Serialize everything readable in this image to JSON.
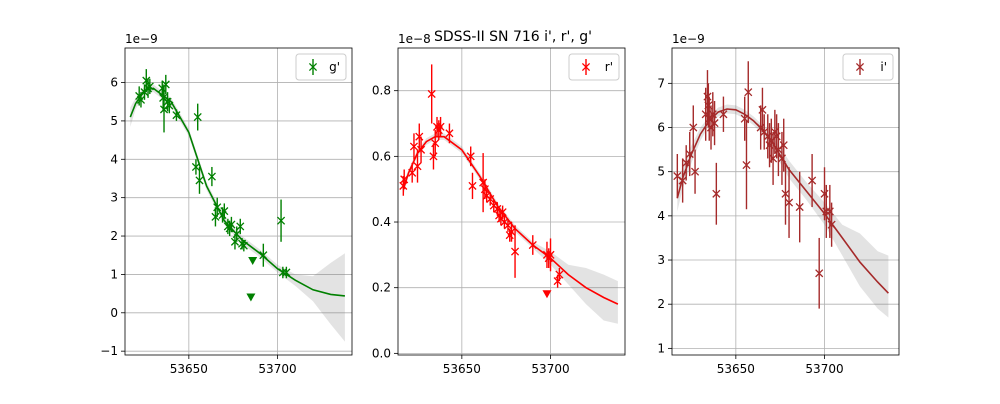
{
  "figure": {
    "title": "SDSS-II SN 716  i', r', g'"
  },
  "chart_data": [
    {
      "type": "scatter",
      "legend_label": "g'",
      "legend_position": "upper right",
      "color": "#008000",
      "grid": true,
      "offset_text": "1e−9",
      "xlim": [
        53614,
        53742
      ],
      "ylim": [
        -1.1,
        6.9
      ],
      "xticks": [
        53650,
        53700
      ],
      "xtick_labels": [
        "53650",
        "53700"
      ],
      "yticks": [
        -1,
        0,
        1,
        2,
        3,
        4,
        5,
        6
      ],
      "ytick_labels": [
        "−1",
        "0",
        "1",
        "2",
        "3",
        "4",
        "5",
        "6"
      ],
      "points": [
        {
          "x": 53622,
          "y": 5.65,
          "err": 0.25
        },
        {
          "x": 53623,
          "y": 5.55,
          "err": 0.2
        },
        {
          "x": 53625,
          "y": 5.75,
          "err": 0.2
        },
        {
          "x": 53626,
          "y": 6.05,
          "err": 0.3
        },
        {
          "x": 53627,
          "y": 5.85,
          "err": 0.25
        },
        {
          "x": 53628,
          "y": 5.9,
          "err": 0.2
        },
        {
          "x": 53635,
          "y": 5.85,
          "err": 0.2
        },
        {
          "x": 53635.5,
          "y": 5.6,
          "err": 0.35
        },
        {
          "x": 53636,
          "y": 5.3,
          "err": 0.6
        },
        {
          "x": 53637,
          "y": 5.95,
          "err": 0.25
        },
        {
          "x": 53638,
          "y": 5.5,
          "err": 0.25
        },
        {
          "x": 53639,
          "y": 5.4,
          "err": 0.2
        },
        {
          "x": 53643,
          "y": 5.15,
          "err": 0.15
        },
        {
          "x": 53654,
          "y": 3.8,
          "err": 0.2
        },
        {
          "x": 53655,
          "y": 5.1,
          "err": 0.35
        },
        {
          "x": 53656,
          "y": 3.45,
          "err": 0.35
        },
        {
          "x": 53663,
          "y": 3.55,
          "err": 0.25
        },
        {
          "x": 53665,
          "y": 2.5,
          "err": 0.25
        },
        {
          "x": 53666,
          "y": 2.75,
          "err": 0.25
        },
        {
          "x": 53669,
          "y": 2.55,
          "err": 0.2
        },
        {
          "x": 53670,
          "y": 2.65,
          "err": 0.2
        },
        {
          "x": 53672,
          "y": 2.25,
          "err": 0.2
        },
        {
          "x": 53673,
          "y": 2.2,
          "err": 0.2
        },
        {
          "x": 53674,
          "y": 2.3,
          "err": 0.2
        },
        {
          "x": 53676,
          "y": 1.85,
          "err": 0.2
        },
        {
          "x": 53677,
          "y": 2.05,
          "err": 0.2
        },
        {
          "x": 53679,
          "y": 2.25,
          "err": 0.2
        },
        {
          "x": 53680,
          "y": 1.8,
          "err": 0.15
        },
        {
          "x": 53681,
          "y": 1.75,
          "err": 0.15
        },
        {
          "x": 53692,
          "y": 1.5,
          "err": 0.3
        },
        {
          "x": 53702,
          "y": 2.4,
          "err": 0.55
        },
        {
          "x": 53703,
          "y": 1.05,
          "err": 0.15
        },
        {
          "x": 53705,
          "y": 1.05,
          "err": 0.15
        }
      ],
      "upper_limits": [
        {
          "x": 53686,
          "y": 1.35
        },
        {
          "x": 53685,
          "y": 0.4
        }
      ],
      "fit_line": {
        "x": [
          53617,
          53620,
          53625,
          53630,
          53640,
          53650,
          53660,
          53670,
          53680,
          53690,
          53700,
          53710,
          53720,
          53730,
          53738
        ],
        "y": [
          5.1,
          5.45,
          5.8,
          5.85,
          5.5,
          4.7,
          3.3,
          2.4,
          1.9,
          1.55,
          1.15,
          0.85,
          0.6,
          0.48,
          0.44
        ]
      },
      "fit_band": {
        "x": [
          53617,
          53620,
          53625,
          53630,
          53640,
          53650,
          53660,
          53670,
          53680,
          53690,
          53700,
          53710,
          53720,
          53730,
          53738
        ],
        "lower": [
          4.85,
          5.3,
          5.7,
          5.75,
          5.4,
          4.6,
          3.2,
          2.3,
          1.8,
          1.45,
          1.05,
          0.7,
          0.3,
          -0.3,
          -0.75
        ],
        "upper": [
          5.35,
          5.6,
          5.9,
          5.95,
          5.6,
          4.8,
          3.4,
          2.5,
          2.0,
          1.65,
          1.25,
          1.0,
          0.95,
          1.3,
          1.55
        ]
      }
    },
    {
      "type": "scatter",
      "legend_label": "r'",
      "legend_position": "upper right",
      "color": "#ff0000",
      "grid": true,
      "offset_text": "1e−8",
      "xlim": [
        53614,
        53742
      ],
      "ylim": [
        -0.005,
        0.93
      ],
      "xticks": [
        53650,
        53700
      ],
      "xtick_labels": [
        "53650",
        "53700"
      ],
      "yticks": [
        0.0,
        0.2,
        0.4,
        0.6,
        0.8
      ],
      "ytick_labels": [
        "0.0",
        "0.2",
        "0.4",
        "0.6",
        "0.8"
      ],
      "points": [
        {
          "x": 53617,
          "y": 0.51,
          "err": 0.03
        },
        {
          "x": 53617.5,
          "y": 0.53,
          "err": 0.03
        },
        {
          "x": 53622,
          "y": 0.55,
          "err": 0.03
        },
        {
          "x": 53623,
          "y": 0.63,
          "err": 0.04
        },
        {
          "x": 53625,
          "y": 0.57,
          "err": 0.05
        },
        {
          "x": 53626,
          "y": 0.66,
          "err": 0.04
        },
        {
          "x": 53627,
          "y": 0.62,
          "err": 0.04
        },
        {
          "x": 53633,
          "y": 0.79,
          "err": 0.09
        },
        {
          "x": 53634,
          "y": 0.6,
          "err": 0.04
        },
        {
          "x": 53635,
          "y": 0.64,
          "err": 0.04
        },
        {
          "x": 53636,
          "y": 0.69,
          "err": 0.03
        },
        {
          "x": 53637,
          "y": 0.68,
          "err": 0.03
        },
        {
          "x": 53638,
          "y": 0.69,
          "err": 0.03
        },
        {
          "x": 53643,
          "y": 0.67,
          "err": 0.03
        },
        {
          "x": 53655,
          "y": 0.6,
          "err": 0.03
        },
        {
          "x": 53656,
          "y": 0.51,
          "err": 0.04
        },
        {
          "x": 53662,
          "y": 0.52,
          "err": 0.09
        },
        {
          "x": 53663,
          "y": 0.5,
          "err": 0.03
        },
        {
          "x": 53664,
          "y": 0.48,
          "err": 0.02
        },
        {
          "x": 53666,
          "y": 0.47,
          "err": 0.02
        },
        {
          "x": 53668,
          "y": 0.45,
          "err": 0.02
        },
        {
          "x": 53670,
          "y": 0.44,
          "err": 0.02
        },
        {
          "x": 53671,
          "y": 0.42,
          "err": 0.02
        },
        {
          "x": 53672,
          "y": 0.41,
          "err": 0.02
        },
        {
          "x": 53673,
          "y": 0.43,
          "err": 0.02
        },
        {
          "x": 53674,
          "y": 0.4,
          "err": 0.02
        },
        {
          "x": 53676,
          "y": 0.39,
          "err": 0.02
        },
        {
          "x": 53677,
          "y": 0.36,
          "err": 0.02
        },
        {
          "x": 53678,
          "y": 0.37,
          "err": 0.03
        },
        {
          "x": 53680,
          "y": 0.31,
          "err": 0.08
        },
        {
          "x": 53690,
          "y": 0.33,
          "err": 0.03
        },
        {
          "x": 53698,
          "y": 0.3,
          "err": 0.04
        },
        {
          "x": 53699,
          "y": 0.29,
          "err": 0.03
        },
        {
          "x": 53700,
          "y": 0.3,
          "err": 0.05
        },
        {
          "x": 53704,
          "y": 0.22,
          "err": 0.02
        },
        {
          "x": 53705,
          "y": 0.24,
          "err": 0.02
        }
      ],
      "upper_limits": [
        {
          "x": 53698,
          "y": 0.18
        }
      ],
      "fit_line": {
        "x": [
          53617,
          53620,
          53625,
          53630,
          53635,
          53640,
          53650,
          53660,
          53670,
          53680,
          53690,
          53700,
          53710,
          53720,
          53730,
          53738
        ],
        "y": [
          0.5,
          0.55,
          0.61,
          0.645,
          0.66,
          0.66,
          0.62,
          0.54,
          0.45,
          0.38,
          0.33,
          0.29,
          0.24,
          0.2,
          0.17,
          0.15
        ]
      },
      "fit_band": {
        "x": [
          53617,
          53620,
          53625,
          53630,
          53635,
          53640,
          53650,
          53660,
          53670,
          53680,
          53690,
          53700,
          53710,
          53720,
          53730,
          53738
        ],
        "lower": [
          0.48,
          0.54,
          0.6,
          0.635,
          0.65,
          0.65,
          0.61,
          0.53,
          0.44,
          0.37,
          0.32,
          0.27,
          0.21,
          0.15,
          0.1,
          0.09
        ],
        "upper": [
          0.52,
          0.56,
          0.62,
          0.655,
          0.67,
          0.67,
          0.63,
          0.55,
          0.46,
          0.39,
          0.34,
          0.31,
          0.27,
          0.26,
          0.24,
          0.22
        ]
      }
    },
    {
      "type": "scatter",
      "legend_label": "i'",
      "legend_position": "upper right",
      "color": "#a52a2a",
      "grid": true,
      "offset_text": "1e−9",
      "xlim": [
        53614,
        53742
      ],
      "ylim": [
        0.85,
        7.8
      ],
      "xticks": [
        53650,
        53700
      ],
      "xtick_labels": [
        "53650",
        "53700"
      ],
      "yticks": [
        1,
        2,
        3,
        4,
        5,
        6,
        7
      ],
      "ytick_labels": [
        "1",
        "2",
        "3",
        "4",
        "5",
        "6",
        "7"
      ],
      "points": [
        {
          "x": 53617,
          "y": 4.9,
          "err": 0.5
        },
        {
          "x": 53620,
          "y": 4.8,
          "err": 0.5
        },
        {
          "x": 53622,
          "y": 5.2,
          "err": 0.4
        },
        {
          "x": 53624,
          "y": 5.4,
          "err": 0.5
        },
        {
          "x": 53626,
          "y": 6.0,
          "err": 0.5
        },
        {
          "x": 53627,
          "y": 5.0,
          "err": 0.5
        },
        {
          "x": 53633,
          "y": 6.3,
          "err": 0.6
        },
        {
          "x": 53634,
          "y": 6.7,
          "err": 0.6
        },
        {
          "x": 53634.5,
          "y": 6.5,
          "err": 0.5
        },
        {
          "x": 53635,
          "y": 6.2,
          "err": 0.5
        },
        {
          "x": 53636,
          "y": 6.0,
          "err": 0.5
        },
        {
          "x": 53637,
          "y": 6.3,
          "err": 0.5
        },
        {
          "x": 53638,
          "y": 6.1,
          "err": 0.5
        },
        {
          "x": 53639,
          "y": 4.5,
          "err": 0.7
        },
        {
          "x": 53643,
          "y": 6.3,
          "err": 0.4
        },
        {
          "x": 53655,
          "y": 6.2,
          "err": 0.5
        },
        {
          "x": 53656,
          "y": 5.15,
          "err": 1.0
        },
        {
          "x": 53657,
          "y": 6.8,
          "err": 0.7
        },
        {
          "x": 53664,
          "y": 6.0,
          "err": 0.5
        },
        {
          "x": 53665,
          "y": 6.4,
          "err": 0.5
        },
        {
          "x": 53666,
          "y": 5.9,
          "err": 0.4
        },
        {
          "x": 53668,
          "y": 5.8,
          "err": 0.5
        },
        {
          "x": 53669,
          "y": 5.6,
          "err": 0.5
        },
        {
          "x": 53670,
          "y": 5.7,
          "err": 0.5
        },
        {
          "x": 53671,
          "y": 5.3,
          "err": 0.6
        },
        {
          "x": 53672,
          "y": 5.9,
          "err": 0.5
        },
        {
          "x": 53673,
          "y": 5.8,
          "err": 0.5
        },
        {
          "x": 53674,
          "y": 5.5,
          "err": 0.6
        },
        {
          "x": 53676,
          "y": 5.3,
          "err": 0.6
        },
        {
          "x": 53677,
          "y": 5.6,
          "err": 0.6
        },
        {
          "x": 53678,
          "y": 4.5,
          "err": 0.7
        },
        {
          "x": 53680,
          "y": 4.3,
          "err": 0.8
        },
        {
          "x": 53686,
          "y": 4.2,
          "err": 0.8
        },
        {
          "x": 53693,
          "y": 4.8,
          "err": 0.6
        },
        {
          "x": 53697,
          "y": 2.7,
          "err": 0.8
        },
        {
          "x": 53700,
          "y": 4.5,
          "err": 0.6
        },
        {
          "x": 53701,
          "y": 4.1,
          "err": 0.6
        },
        {
          "x": 53703,
          "y": 4.1,
          "err": 0.6
        },
        {
          "x": 53704,
          "y": 3.8,
          "err": 0.5
        }
      ],
      "upper_limits": [],
      "fit_line": {
        "x": [
          53617,
          53620,
          53625,
          53630,
          53635,
          53640,
          53645,
          53650,
          53655,
          53660,
          53665,
          53670,
          53680,
          53690,
          53700,
          53710,
          53720,
          53730,
          53736
        ],
        "y": [
          4.4,
          4.85,
          5.4,
          5.85,
          6.15,
          6.35,
          6.42,
          6.4,
          6.3,
          6.15,
          5.95,
          5.7,
          5.05,
          4.55,
          4.05,
          3.5,
          2.95,
          2.5,
          2.25
        ]
      },
      "fit_band": {
        "x": [
          53617,
          53620,
          53625,
          53630,
          53635,
          53640,
          53645,
          53650,
          53655,
          53660,
          53665,
          53670,
          53680,
          53690,
          53700,
          53710,
          53720,
          53730,
          53736
        ],
        "lower": [
          4.1,
          4.6,
          5.2,
          5.7,
          6.05,
          6.25,
          6.32,
          6.3,
          6.2,
          6.05,
          5.85,
          5.55,
          4.85,
          4.35,
          3.8,
          3.1,
          2.4,
          1.9,
          1.7
        ],
        "upper": [
          4.7,
          5.1,
          5.6,
          6.0,
          6.25,
          6.45,
          6.52,
          6.5,
          6.4,
          6.25,
          6.05,
          5.85,
          5.25,
          4.75,
          4.3,
          3.8,
          3.6,
          3.2,
          3.1
        ]
      }
    }
  ]
}
